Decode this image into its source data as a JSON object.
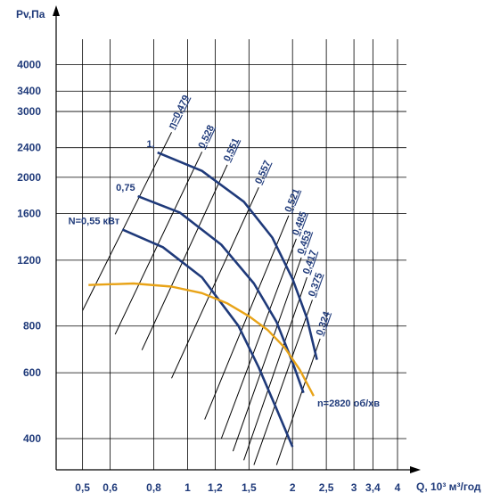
{
  "chart_data": {
    "type": "line",
    "title": "",
    "xlabel": "Q, 10³ м³/год",
    "ylabel": "Pv,Па",
    "x_scale": "log",
    "y_scale": "log",
    "xlim": [
      0.42,
      4.5
    ],
    "ylim": [
      330,
      5400
    ],
    "x_ticks": [
      {
        "value": 0.5,
        "label": "0,5"
      },
      {
        "value": 0.6,
        "label": "0,6"
      },
      {
        "value": 0.8,
        "label": "0,8"
      },
      {
        "value": 1,
        "label": "1"
      },
      {
        "value": 1.2,
        "label": "1,2"
      },
      {
        "value": 1.5,
        "label": "1,5"
      },
      {
        "value": 2,
        "label": "2"
      },
      {
        "value": 2.5,
        "label": "2,5"
      },
      {
        "value": 3,
        "label": "3"
      },
      {
        "value": 3.4,
        "label": "3,4"
      },
      {
        "value": 4,
        "label": "4"
      }
    ],
    "y_ticks": [
      {
        "value": 400,
        "label": "400"
      },
      {
        "value": 600,
        "label": "600"
      },
      {
        "value": 800,
        "label": "800"
      },
      {
        "value": 1200,
        "label": "1200"
      },
      {
        "value": 1600,
        "label": "1600"
      },
      {
        "value": 2000,
        "label": "2000"
      },
      {
        "value": 2400,
        "label": "2400"
      },
      {
        "value": 3000,
        "label": "3000"
      },
      {
        "value": 3400,
        "label": "3400"
      },
      {
        "value": 4000,
        "label": "4000"
      }
    ],
    "grid": true,
    "power_curves": [
      {
        "label": "N=0,55 кВт",
        "color": "#1f3a7a",
        "points": [
          [
            0.65,
            1450
          ],
          [
            0.85,
            1300
          ],
          [
            1.1,
            1080
          ],
          [
            1.4,
            800
          ],
          [
            1.6,
            620
          ],
          [
            1.8,
            480
          ],
          [
            2.0,
            380
          ]
        ]
      },
      {
        "label": "0,75",
        "color": "#1f3a7a",
        "points": [
          [
            0.72,
            1780
          ],
          [
            0.95,
            1610
          ],
          [
            1.25,
            1320
          ],
          [
            1.55,
            1040
          ],
          [
            1.8,
            820
          ],
          [
            2.0,
            640
          ],
          [
            2.15,
            530
          ]
        ]
      },
      {
        "label": "1,",
        "color": "#1f3a7a",
        "points": [
          [
            0.82,
            2330
          ],
          [
            1.1,
            2080
          ],
          [
            1.45,
            1720
          ],
          [
            1.75,
            1380
          ],
          [
            2.0,
            1070
          ],
          [
            2.2,
            840
          ],
          [
            2.35,
            650
          ]
        ]
      }
    ],
    "efficiency_lines": [
      {
        "label": "η=0,479",
        "points": [
          [
            0.5,
            880
          ],
          [
            0.9,
            2640
          ]
        ]
      },
      {
        "label": "0,528",
        "points": [
          [
            0.62,
            760
          ],
          [
            1.1,
            2340
          ]
        ]
      },
      {
        "label": "0,551",
        "points": [
          [
            0.74,
            690
          ],
          [
            1.3,
            2160
          ]
        ]
      },
      {
        "label": "0,557",
        "points": [
          [
            0.9,
            580
          ],
          [
            1.6,
            1880
          ]
        ]
      },
      {
        "label": "0,521",
        "points": [
          [
            1.12,
            450
          ],
          [
            1.95,
            1580
          ]
        ]
      },
      {
        "label": "0,485",
        "points": [
          [
            1.25,
            400
          ],
          [
            2.05,
            1370
          ]
        ]
      },
      {
        "label": "0,453",
        "points": [
          [
            1.35,
            370
          ],
          [
            2.12,
            1220
          ]
        ]
      },
      {
        "label": "0,417",
        "points": [
          [
            1.45,
            350
          ],
          [
            2.2,
            1080
          ]
        ]
      },
      {
        "label": "0,375",
        "points": [
          [
            1.55,
            340
          ],
          [
            2.28,
            940
          ]
        ]
      },
      {
        "label": "0,324",
        "points": [
          [
            1.8,
            340
          ],
          [
            2.4,
            740
          ]
        ]
      }
    ],
    "fan_curve": {
      "label": "n=2820 об/хв",
      "color": "#e8a317",
      "points": [
        [
          0.52,
          1030
        ],
        [
          0.7,
          1040
        ],
        [
          0.9,
          1020
        ],
        [
          1.1,
          980
        ],
        [
          1.3,
          920
        ],
        [
          1.5,
          850
        ],
        [
          1.7,
          780
        ],
        [
          1.9,
          700
        ],
        [
          2.1,
          610
        ],
        [
          2.3,
          520
        ]
      ]
    }
  }
}
